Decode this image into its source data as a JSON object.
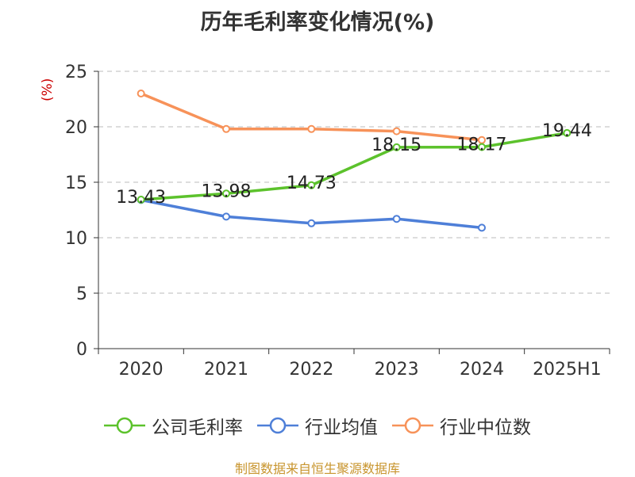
{
  "title": "历年毛利率变化情况(%)",
  "unit_label": "(%)",
  "source": "制图数据来自恒生聚源数据库",
  "chart_data": {
    "type": "line",
    "categories": [
      "2020",
      "2021",
      "2022",
      "2023",
      "2024",
      "2025H1"
    ],
    "ylim": [
      0,
      25
    ],
    "yticks": [
      0,
      5,
      10,
      15,
      20,
      25
    ],
    "grid": true,
    "legend_position": "bottom",
    "series": [
      {
        "name": "公司毛利率",
        "color": "#5cc22c",
        "labels": true,
        "values": [
          13.43,
          13.98,
          14.73,
          18.15,
          18.17,
          19.44
        ]
      },
      {
        "name": "行业均值",
        "color": "#4e7fd8",
        "labels": false,
        "values": [
          13.4,
          11.9,
          11.3,
          11.7,
          10.9,
          null
        ]
      },
      {
        "name": "行业中位数",
        "color": "#f79259",
        "labels": false,
        "values": [
          23.0,
          19.8,
          19.8,
          19.6,
          18.8,
          null
        ]
      }
    ],
    "point_labels": [
      "13.43",
      "13.98",
      "14.73",
      "18.15",
      "18.17",
      "19.44"
    ]
  }
}
